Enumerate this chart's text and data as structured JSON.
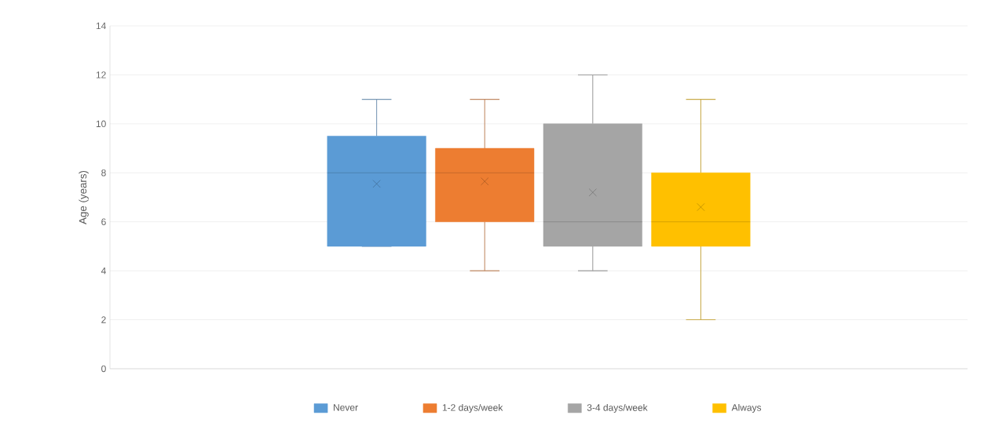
{
  "chart_data": {
    "type": "box",
    "ylabel": "Age (years)",
    "categories": [
      null
    ],
    "ylim": [
      0,
      14
    ],
    "yticks": [
      0,
      2,
      4,
      6,
      8,
      10,
      12,
      14
    ],
    "grid": "y",
    "legend": "bottom",
    "marker": "cross",
    "series": [
      {
        "name": "Never",
        "color": "#5b9bd5",
        "boxes": [
          {
            "low": 5,
            "q1": 5,
            "median": 8,
            "q3": 9.5,
            "high": 11,
            "mean": 7.55
          }
        ]
      },
      {
        "name": "1-2 days/week",
        "color": "#ed7d31",
        "boxes": [
          {
            "low": 4,
            "q1": 6,
            "median": 8,
            "q3": 9,
            "high": 11,
            "mean": 7.65
          }
        ]
      },
      {
        "name": "3-4 days/week",
        "color": "#a5a5a5",
        "boxes": [
          {
            "low": 4,
            "q1": 5,
            "median": 6,
            "q3": 10,
            "high": 12,
            "mean": 7.2
          }
        ]
      },
      {
        "name": "Always",
        "color": "#ffc000",
        "boxes": [
          {
            "low": 2,
            "q1": 5,
            "median": 6,
            "q3": 8,
            "high": 11,
            "mean": 6.6
          }
        ]
      }
    ]
  }
}
